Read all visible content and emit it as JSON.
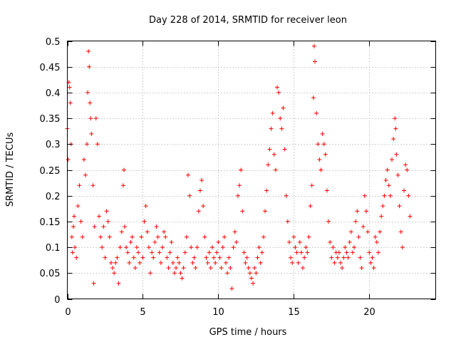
{
  "chart_data": {
    "type": "scatter",
    "title": "Day 228 of 2014, SRMTID for receiver leon",
    "xlabel": "GPS time / hours",
    "ylabel": "SRMTID / TECUs",
    "xlim": [
      0,
      24.4
    ],
    "ylim": [
      0,
      0.5
    ],
    "x_ticks": [
      0,
      5,
      10,
      15,
      20
    ],
    "y_ticks": [
      0,
      0.05,
      0.1,
      0.15,
      0.2,
      0.25,
      0.3,
      0.35,
      0.4,
      0.45,
      0.5
    ],
    "x_tick_labels": [
      "0",
      "5",
      "10",
      "15",
      "20"
    ],
    "y_tick_labels": [
      "0",
      "0.05",
      "0.1",
      "0.15",
      "0.2",
      "0.25",
      "0.3",
      "0.35",
      "0.4",
      "0.45",
      "0.5"
    ],
    "grid": true,
    "marker": "+",
    "series_color": "#ff0000",
    "series": [
      {
        "name": "SRMTID",
        "points": [
          [
            0.0,
            0.33
          ],
          [
            0.05,
            0.27
          ],
          [
            0.1,
            0.42
          ],
          [
            0.15,
            0.41
          ],
          [
            0.2,
            0.38
          ],
          [
            0.25,
            0.3
          ],
          [
            0.3,
            0.12
          ],
          [
            0.35,
            0.09
          ],
          [
            0.4,
            0.14
          ],
          [
            0.45,
            0.16
          ],
          [
            0.5,
            0.1
          ],
          [
            0.6,
            0.08
          ],
          [
            0.7,
            0.18
          ],
          [
            0.8,
            0.22
          ],
          [
            0.9,
            0.15
          ],
          [
            1.0,
            0.12
          ],
          [
            1.1,
            0.27
          ],
          [
            1.2,
            0.24
          ],
          [
            1.3,
            0.3
          ],
          [
            1.35,
            0.4
          ],
          [
            1.4,
            0.48
          ],
          [
            1.45,
            0.45
          ],
          [
            1.5,
            0.38
          ],
          [
            1.55,
            0.35
          ],
          [
            1.6,
            0.32
          ],
          [
            1.7,
            0.22
          ],
          [
            1.75,
            0.03
          ],
          [
            1.8,
            0.14
          ],
          [
            1.9,
            0.35
          ],
          [
            2.0,
            0.3
          ],
          [
            2.1,
            0.16
          ],
          [
            2.2,
            0.12
          ],
          [
            2.3,
            0.1
          ],
          [
            2.4,
            0.14
          ],
          [
            2.5,
            0.08
          ],
          [
            2.6,
            0.17
          ],
          [
            2.7,
            0.15
          ],
          [
            2.8,
            0.12
          ],
          [
            2.9,
            0.07
          ],
          [
            3.0,
            0.06
          ],
          [
            3.1,
            0.05
          ],
          [
            3.2,
            0.07
          ],
          [
            3.3,
            0.08
          ],
          [
            3.4,
            0.03
          ],
          [
            3.5,
            0.1
          ],
          [
            3.6,
            0.13
          ],
          [
            3.7,
            0.22
          ],
          [
            3.75,
            0.25
          ],
          [
            3.8,
            0.14
          ],
          [
            3.9,
            0.1
          ],
          [
            4.0,
            0.09
          ],
          [
            4.1,
            0.07
          ],
          [
            4.2,
            0.11
          ],
          [
            4.3,
            0.12
          ],
          [
            4.4,
            0.08
          ],
          [
            4.5,
            0.06
          ],
          [
            4.6,
            0.1
          ],
          [
            4.7,
            0.09
          ],
          [
            4.8,
            0.07
          ],
          [
            4.9,
            0.12
          ],
          [
            5.0,
            0.08
          ],
          [
            5.1,
            0.15
          ],
          [
            5.2,
            0.18
          ],
          [
            5.3,
            0.13
          ],
          [
            5.4,
            0.1
          ],
          [
            5.5,
            0.05
          ],
          [
            5.6,
            0.09
          ],
          [
            5.7,
            0.08
          ],
          [
            5.8,
            0.11
          ],
          [
            5.9,
            0.14
          ],
          [
            6.0,
            0.12
          ],
          [
            6.1,
            0.09
          ],
          [
            6.2,
            0.07
          ],
          [
            6.3,
            0.1
          ],
          [
            6.4,
            0.13
          ],
          [
            6.5,
            0.12
          ],
          [
            6.6,
            0.08
          ],
          [
            6.7,
            0.06
          ],
          [
            6.8,
            0.09
          ],
          [
            6.9,
            0.11
          ],
          [
            7.0,
            0.07
          ],
          [
            7.1,
            0.05
          ],
          [
            7.2,
            0.06
          ],
          [
            7.3,
            0.08
          ],
          [
            7.4,
            0.07
          ],
          [
            7.5,
            0.05
          ],
          [
            7.6,
            0.04
          ],
          [
            7.7,
            0.06
          ],
          [
            7.8,
            0.09
          ],
          [
            7.9,
            0.12
          ],
          [
            8.0,
            0.24
          ],
          [
            8.1,
            0.2
          ],
          [
            8.2,
            0.1
          ],
          [
            8.3,
            0.07
          ],
          [
            8.4,
            0.08
          ],
          [
            8.5,
            0.06
          ],
          [
            8.6,
            0.1
          ],
          [
            8.7,
            0.17
          ],
          [
            8.8,
            0.21
          ],
          [
            8.9,
            0.23
          ],
          [
            9.0,
            0.18
          ],
          [
            9.1,
            0.12
          ],
          [
            9.2,
            0.08
          ],
          [
            9.3,
            0.07
          ],
          [
            9.4,
            0.09
          ],
          [
            9.5,
            0.06
          ],
          [
            9.6,
            0.1
          ],
          [
            9.7,
            0.08
          ],
          [
            9.8,
            0.07
          ],
          [
            9.9,
            0.09
          ],
          [
            10.0,
            0.11
          ],
          [
            10.1,
            0.08
          ],
          [
            10.2,
            0.06
          ],
          [
            10.3,
            0.1
          ],
          [
            10.4,
            0.12
          ],
          [
            10.5,
            0.07
          ],
          [
            10.6,
            0.05
          ],
          [
            10.7,
            0.08
          ],
          [
            10.8,
            0.06
          ],
          [
            10.9,
            0.02
          ],
          [
            11.0,
            0.1
          ],
          [
            11.1,
            0.13
          ],
          [
            11.2,
            0.11
          ],
          [
            11.3,
            0.2
          ],
          [
            11.4,
            0.22
          ],
          [
            11.5,
            0.25
          ],
          [
            11.6,
            0.17
          ],
          [
            11.7,
            0.09
          ],
          [
            11.8,
            0.07
          ],
          [
            11.9,
            0.08
          ],
          [
            12.0,
            0.06
          ],
          [
            12.1,
            0.05
          ],
          [
            12.2,
            0.04
          ],
          [
            12.3,
            0.03
          ],
          [
            12.4,
            0.06
          ],
          [
            12.5,
            0.05
          ],
          [
            12.6,
            0.08
          ],
          [
            12.7,
            0.1
          ],
          [
            12.8,
            0.07
          ],
          [
            12.9,
            0.09
          ],
          [
            13.0,
            0.12
          ],
          [
            13.1,
            0.17
          ],
          [
            13.2,
            0.21
          ],
          [
            13.3,
            0.26
          ],
          [
            13.4,
            0.29
          ],
          [
            13.5,
            0.33
          ],
          [
            13.6,
            0.36
          ],
          [
            13.7,
            0.28
          ],
          [
            13.8,
            0.25
          ],
          [
            13.9,
            0.41
          ],
          [
            14.0,
            0.4
          ],
          [
            14.1,
            0.35
          ],
          [
            14.2,
            0.33
          ],
          [
            14.3,
            0.37
          ],
          [
            14.4,
            0.29
          ],
          [
            14.5,
            0.2
          ],
          [
            14.6,
            0.15
          ],
          [
            14.7,
            0.11
          ],
          [
            14.8,
            0.08
          ],
          [
            14.9,
            0.07
          ],
          [
            15.0,
            0.12
          ],
          [
            15.1,
            0.1
          ],
          [
            15.2,
            0.09
          ],
          [
            15.3,
            0.07
          ],
          [
            15.4,
            0.11
          ],
          [
            15.5,
            0.09
          ],
          [
            15.6,
            0.06
          ],
          [
            15.7,
            0.08
          ],
          [
            15.8,
            0.1
          ],
          [
            15.9,
            0.09
          ],
          [
            16.0,
            0.12
          ],
          [
            16.1,
            0.18
          ],
          [
            16.2,
            0.22
          ],
          [
            16.3,
            0.39
          ],
          [
            16.35,
            0.49
          ],
          [
            16.4,
            0.46
          ],
          [
            16.5,
            0.36
          ],
          [
            16.6,
            0.3
          ],
          [
            16.7,
            0.27
          ],
          [
            16.8,
            0.25
          ],
          [
            16.9,
            0.32
          ],
          [
            17.0,
            0.3
          ],
          [
            17.1,
            0.28
          ],
          [
            17.2,
            0.21
          ],
          [
            17.3,
            0.15
          ],
          [
            17.4,
            0.11
          ],
          [
            17.5,
            0.08
          ],
          [
            17.6,
            0.1
          ],
          [
            17.7,
            0.07
          ],
          [
            17.8,
            0.09
          ],
          [
            17.9,
            0.08
          ],
          [
            18.0,
            0.09
          ],
          [
            18.1,
            0.07
          ],
          [
            18.2,
            0.06
          ],
          [
            18.3,
            0.08
          ],
          [
            18.4,
            0.1
          ],
          [
            18.5,
            0.09
          ],
          [
            18.6,
            0.08
          ],
          [
            18.7,
            0.11
          ],
          [
            18.8,
            0.13
          ],
          [
            18.9,
            0.09
          ],
          [
            19.0,
            0.1
          ],
          [
            19.1,
            0.15
          ],
          [
            19.2,
            0.17
          ],
          [
            19.3,
            0.12
          ],
          [
            19.4,
            0.08
          ],
          [
            19.5,
            0.06
          ],
          [
            19.6,
            0.14
          ],
          [
            19.7,
            0.2
          ],
          [
            19.8,
            0.17
          ],
          [
            19.9,
            0.13
          ],
          [
            20.0,
            0.09
          ],
          [
            20.1,
            0.07
          ],
          [
            20.2,
            0.08
          ],
          [
            20.3,
            0.06
          ],
          [
            20.4,
            0.12
          ],
          [
            20.5,
            0.11
          ],
          [
            20.6,
            0.09
          ],
          [
            20.7,
            0.13
          ],
          [
            20.8,
            0.16
          ],
          [
            20.9,
            0.18
          ],
          [
            21.0,
            0.2
          ],
          [
            21.1,
            0.23
          ],
          [
            21.2,
            0.25
          ],
          [
            21.3,
            0.22
          ],
          [
            21.4,
            0.2
          ],
          [
            21.5,
            0.27
          ],
          [
            21.6,
            0.31
          ],
          [
            21.7,
            0.35
          ],
          [
            21.75,
            0.33
          ],
          [
            21.8,
            0.28
          ],
          [
            21.9,
            0.24
          ],
          [
            22.0,
            0.18
          ],
          [
            22.1,
            0.13
          ],
          [
            22.2,
            0.1
          ],
          [
            22.3,
            0.21
          ],
          [
            22.4,
            0.26
          ],
          [
            22.5,
            0.25
          ],
          [
            22.6,
            0.2
          ],
          [
            22.7,
            0.16
          ]
        ]
      }
    ]
  }
}
